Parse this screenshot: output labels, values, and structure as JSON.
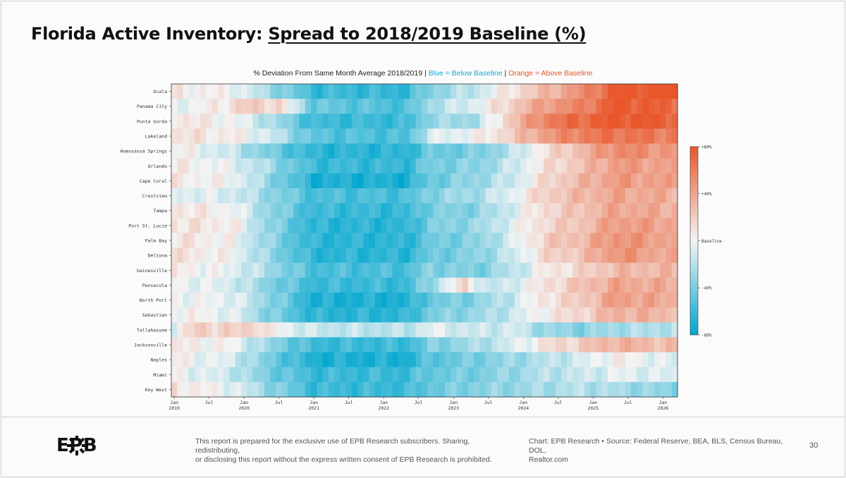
{
  "header": {
    "title_prefix": "Florida Active Inventory: ",
    "title_underlined": "Spread to 2018/2019 Baseline (%)"
  },
  "colors": {
    "blue": "#00a6ce",
    "white": "#f4f4f4",
    "orange": "#e8562a"
  },
  "chart_data": {
    "type": "heatmap",
    "title_main": "% Deviation From Same Month Average 2018/2019 | ",
    "title_blue": "Blue = Below Baseline",
    "title_sep": " | ",
    "title_orange": "Orange = Above Baseline",
    "rows": [
      "Ocala",
      "Panama City",
      "Punta Gorda",
      "Lakeland",
      "Homosassa Springs",
      "Orlando",
      "Cape Coral",
      "Crestview",
      "Tampa",
      "Port St. Lucie",
      "Palm Bay",
      "Deltona",
      "Gainesville",
      "Pensacola",
      "North Port",
      "Sebastian",
      "Tallahassee",
      "Jacksonville",
      "Naples",
      "Miami",
      "Key West"
    ],
    "x_start": "2019-01",
    "n_months": 87,
    "x_ticks": [
      {
        "month": 0,
        "label": "Jan",
        "year": "2019"
      },
      {
        "month": 6,
        "label": "Jul",
        "year": ""
      },
      {
        "month": 12,
        "label": "Jan",
        "year": "2020"
      },
      {
        "month": 18,
        "label": "Jul",
        "year": ""
      },
      {
        "month": 24,
        "label": "Jan",
        "year": "2021"
      },
      {
        "month": 30,
        "label": "Jul",
        "year": ""
      },
      {
        "month": 36,
        "label": "Jan",
        "year": "2022"
      },
      {
        "month": 42,
        "label": "Jul",
        "year": ""
      },
      {
        "month": 48,
        "label": "Jan",
        "year": "2023"
      },
      {
        "month": 54,
        "label": "Jul",
        "year": ""
      },
      {
        "month": 60,
        "label": "Jan",
        "year": "2024"
      },
      {
        "month": 66,
        "label": "Jul",
        "year": ""
      },
      {
        "month": 72,
        "label": "Jan",
        "year": "2025"
      },
      {
        "month": 78,
        "label": "Jul",
        "year": ""
      },
      {
        "month": 84,
        "label": "Jan",
        "year": "2026"
      }
    ],
    "value_range": [
      -80,
      80
    ],
    "colorbar_ticks": [
      {
        "value": 80,
        "label": "+80%"
      },
      {
        "value": 40,
        "label": "+40%"
      },
      {
        "value": 0,
        "label": "Baseline"
      },
      {
        "value": -40,
        "label": "-40%"
      },
      {
        "value": -80,
        "label": "-80%"
      }
    ],
    "row_profiles": [
      [
        [
          0,
          5
        ],
        [
          10,
          0
        ],
        [
          16,
          -25
        ],
        [
          24,
          -60
        ],
        [
          40,
          -62
        ],
        [
          44,
          -35
        ],
        [
          52,
          -15
        ],
        [
          58,
          10
        ],
        [
          64,
          30
        ],
        [
          70,
          50
        ],
        [
          76,
          78
        ],
        [
          86,
          85
        ]
      ],
      [
        [
          0,
          -5
        ],
        [
          8,
          5
        ],
        [
          12,
          20
        ],
        [
          18,
          15
        ],
        [
          24,
          -45
        ],
        [
          40,
          -55
        ],
        [
          44,
          -25
        ],
        [
          52,
          -5
        ],
        [
          58,
          20
        ],
        [
          64,
          45
        ],
        [
          70,
          55
        ],
        [
          76,
          80
        ],
        [
          86,
          70
        ]
      ],
      [
        [
          0,
          10
        ],
        [
          10,
          0
        ],
        [
          16,
          -20
        ],
        [
          24,
          -60
        ],
        [
          40,
          -60
        ],
        [
          44,
          -30
        ],
        [
          52,
          -25
        ],
        [
          58,
          25
        ],
        [
          64,
          60
        ],
        [
          70,
          70
        ],
        [
          76,
          80
        ],
        [
          86,
          75
        ]
      ],
      [
        [
          0,
          10
        ],
        [
          10,
          5
        ],
        [
          16,
          -10
        ],
        [
          24,
          -50
        ],
        [
          40,
          -55
        ],
        [
          44,
          -10
        ],
        [
          52,
          0
        ],
        [
          58,
          20
        ],
        [
          64,
          45
        ],
        [
          70,
          60
        ],
        [
          76,
          65
        ],
        [
          86,
          60
        ]
      ],
      [
        [
          0,
          5
        ],
        [
          10,
          -15
        ],
        [
          16,
          -40
        ],
        [
          24,
          -65
        ],
        [
          40,
          -65
        ],
        [
          44,
          -45
        ],
        [
          52,
          -40
        ],
        [
          58,
          -20
        ],
        [
          64,
          10
        ],
        [
          70,
          30
        ],
        [
          76,
          55
        ],
        [
          86,
          45
        ]
      ],
      [
        [
          0,
          5
        ],
        [
          10,
          -5
        ],
        [
          16,
          -25
        ],
        [
          24,
          -60
        ],
        [
          40,
          -62
        ],
        [
          44,
          -40
        ],
        [
          52,
          -35
        ],
        [
          58,
          -15
        ],
        [
          64,
          10
        ],
        [
          70,
          25
        ],
        [
          76,
          45
        ],
        [
          86,
          40
        ]
      ],
      [
        [
          0,
          5
        ],
        [
          10,
          0
        ],
        [
          16,
          -30
        ],
        [
          24,
          -70
        ],
        [
          40,
          -70
        ],
        [
          44,
          -45
        ],
        [
          52,
          -30
        ],
        [
          58,
          -15
        ],
        [
          64,
          15
        ],
        [
          70,
          30
        ],
        [
          76,
          45
        ],
        [
          86,
          40
        ]
      ],
      [
        [
          0,
          -5
        ],
        [
          10,
          -10
        ],
        [
          16,
          -30
        ],
        [
          24,
          -55
        ],
        [
          40,
          -55
        ],
        [
          44,
          -35
        ],
        [
          52,
          -25
        ],
        [
          58,
          -5
        ],
        [
          64,
          20
        ],
        [
          70,
          30
        ],
        [
          76,
          40
        ],
        [
          86,
          35
        ]
      ],
      [
        [
          0,
          10
        ],
        [
          10,
          0
        ],
        [
          16,
          -30
        ],
        [
          24,
          -60
        ],
        [
          40,
          -62
        ],
        [
          44,
          -40
        ],
        [
          52,
          -35
        ],
        [
          58,
          -10
        ],
        [
          64,
          15
        ],
        [
          70,
          25
        ],
        [
          76,
          40
        ],
        [
          86,
          35
        ]
      ],
      [
        [
          0,
          10
        ],
        [
          10,
          5
        ],
        [
          16,
          -30
        ],
        [
          24,
          -65
        ],
        [
          40,
          -65
        ],
        [
          44,
          -40
        ],
        [
          52,
          -30
        ],
        [
          58,
          -5
        ],
        [
          64,
          15
        ],
        [
          70,
          25
        ],
        [
          76,
          45
        ],
        [
          86,
          40
        ]
      ],
      [
        [
          0,
          10
        ],
        [
          10,
          0
        ],
        [
          16,
          -30
        ],
        [
          24,
          -65
        ],
        [
          40,
          -65
        ],
        [
          44,
          -45
        ],
        [
          52,
          -35
        ],
        [
          58,
          -10
        ],
        [
          64,
          20
        ],
        [
          70,
          30
        ],
        [
          76,
          50
        ],
        [
          86,
          40
        ]
      ],
      [
        [
          0,
          10
        ],
        [
          10,
          0
        ],
        [
          16,
          -30
        ],
        [
          24,
          -65
        ],
        [
          40,
          -65
        ],
        [
          44,
          -45
        ],
        [
          52,
          -35
        ],
        [
          58,
          -15
        ],
        [
          64,
          15
        ],
        [
          70,
          25
        ],
        [
          76,
          50
        ],
        [
          86,
          35
        ]
      ],
      [
        [
          0,
          5
        ],
        [
          10,
          -5
        ],
        [
          16,
          -25
        ],
        [
          24,
          -55
        ],
        [
          40,
          -55
        ],
        [
          44,
          -35
        ],
        [
          52,
          -40
        ],
        [
          58,
          -20
        ],
        [
          64,
          5
        ],
        [
          70,
          15
        ],
        [
          76,
          30
        ],
        [
          86,
          30
        ]
      ],
      [
        [
          0,
          0
        ],
        [
          10,
          -10
        ],
        [
          16,
          -35
        ],
        [
          24,
          -60
        ],
        [
          40,
          -60
        ],
        [
          44,
          -30
        ],
        [
          50,
          15
        ],
        [
          54,
          -20
        ],
        [
          58,
          -10
        ],
        [
          64,
          10
        ],
        [
          70,
          25
        ],
        [
          76,
          40
        ],
        [
          86,
          35
        ]
      ],
      [
        [
          0,
          0
        ],
        [
          10,
          -5
        ],
        [
          16,
          -30
        ],
        [
          24,
          -70
        ],
        [
          40,
          -70
        ],
        [
          44,
          -45
        ],
        [
          52,
          -35
        ],
        [
          58,
          -15
        ],
        [
          64,
          10
        ],
        [
          70,
          20
        ],
        [
          76,
          45
        ],
        [
          86,
          35
        ]
      ],
      [
        [
          0,
          5
        ],
        [
          10,
          -5
        ],
        [
          16,
          -35
        ],
        [
          24,
          -65
        ],
        [
          40,
          -65
        ],
        [
          44,
          -40
        ],
        [
          52,
          -30
        ],
        [
          58,
          -15
        ],
        [
          64,
          5
        ],
        [
          70,
          15
        ],
        [
          76,
          35
        ],
        [
          86,
          30
        ]
      ],
      [
        [
          0,
          -5
        ],
        [
          4,
          20
        ],
        [
          10,
          15
        ],
        [
          14,
          20
        ],
        [
          16,
          5
        ],
        [
          24,
          -15
        ],
        [
          40,
          -20
        ],
        [
          44,
          -5
        ],
        [
          52,
          -15
        ],
        [
          58,
          -10
        ],
        [
          64,
          -30
        ],
        [
          70,
          -35
        ],
        [
          76,
          -25
        ],
        [
          86,
          -20
        ]
      ],
      [
        [
          0,
          5
        ],
        [
          10,
          0
        ],
        [
          16,
          -30
        ],
        [
          24,
          -60
        ],
        [
          40,
          -60
        ],
        [
          44,
          -40
        ],
        [
          52,
          -25
        ],
        [
          58,
          -10
        ],
        [
          64,
          10
        ],
        [
          70,
          20
        ],
        [
          76,
          35
        ],
        [
          86,
          25
        ]
      ],
      [
        [
          0,
          5
        ],
        [
          10,
          -10
        ],
        [
          16,
          -40
        ],
        [
          24,
          -70
        ],
        [
          40,
          -70
        ],
        [
          44,
          -50
        ],
        [
          52,
          -40
        ],
        [
          58,
          -30
        ],
        [
          64,
          -20
        ],
        [
          70,
          -10
        ],
        [
          76,
          5
        ],
        [
          86,
          -10
        ]
      ],
      [
        [
          0,
          0
        ],
        [
          10,
          -15
        ],
        [
          16,
          -40
        ],
        [
          24,
          -60
        ],
        [
          40,
          -60
        ],
        [
          44,
          -45
        ],
        [
          52,
          -40
        ],
        [
          58,
          -30
        ],
        [
          64,
          -20
        ],
        [
          70,
          -15
        ],
        [
          76,
          -5
        ],
        [
          86,
          -10
        ]
      ],
      [
        [
          0,
          10
        ],
        [
          10,
          -5
        ],
        [
          16,
          -30
        ],
        [
          24,
          -60
        ],
        [
          40,
          -60
        ],
        [
          44,
          -45
        ],
        [
          52,
          -35
        ],
        [
          58,
          -30
        ],
        [
          64,
          -25
        ],
        [
          70,
          -20
        ],
        [
          76,
          -25
        ],
        [
          86,
          -35
        ]
      ]
    ]
  },
  "footer": {
    "logo_text": "EPB",
    "disclaimer_line1": "This report is prepared for the exclusive use of EPB Research subscribers. Sharing, redistributing,",
    "disclaimer_line2": "or disclosing this report without the express written consent of EPB Research is prohibited.",
    "credits_line1": "Chart: EPB Research  •  Source: Federal Reserve, BEA, BLS, Census Bureau, DOL,",
    "credits_line2": "Realtor.com",
    "page_number": "30"
  }
}
